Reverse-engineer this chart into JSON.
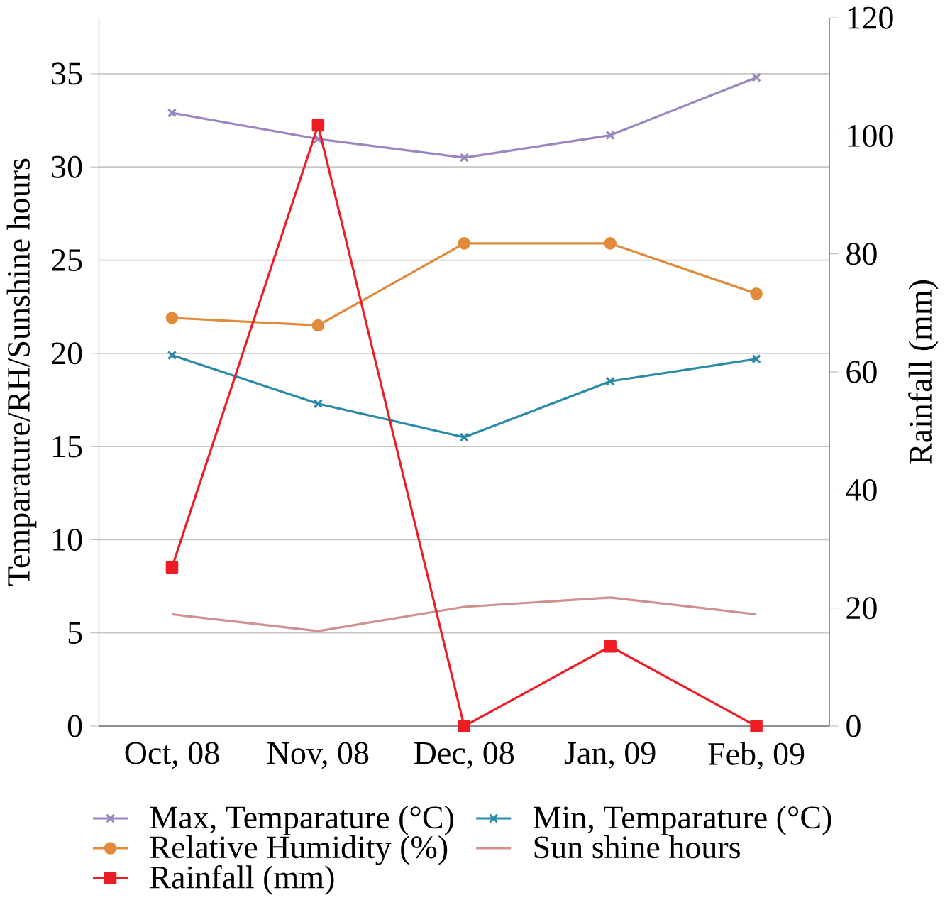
{
  "chart_data": {
    "type": "line",
    "categories": [
      "Oct, 08",
      "Nov, 08",
      "Dec, 08",
      "Jan, 09",
      "Feb, 09"
    ],
    "ylabel": "Temparature/RH/Sunshine hours",
    "y2label": "Rainfall (mm)",
    "ylim": [
      0,
      38
    ],
    "yticks": [
      0,
      5,
      10,
      15,
      20,
      25,
      30,
      35
    ],
    "y2lim": [
      0,
      120
    ],
    "y2ticks": [
      0,
      20,
      40,
      60,
      80,
      100,
      120
    ],
    "grid": "y",
    "legend": "bottom",
    "line_style": "solid",
    "series": [
      {
        "name": "Max, Temparature (°C)",
        "color": "#9a86c0",
        "marker": "cross",
        "values": [
          32.9,
          31.5,
          30.5,
          31.7,
          34.8
        ]
      },
      {
        "name": "Min, Temparature (°C)",
        "color": "#2a8aa8",
        "marker": "cross",
        "values": [
          19.9,
          17.3,
          15.5,
          18.5,
          19.7
        ]
      },
      {
        "name": "Relative Humidity (%)",
        "color": "#e08a3a",
        "marker": "circle",
        "values": [
          21.9,
          21.5,
          25.9,
          25.9,
          23.2
        ]
      },
      {
        "name": "Sun shine hours",
        "color": "#d09090",
        "marker": "none",
        "values": [
          6.0,
          5.1,
          6.4,
          6.9,
          6.0
        ]
      },
      {
        "name": "Rainfall (mm)",
        "color": "#ee1c25",
        "marker": "square",
        "axis": "y2",
        "values": [
          26.9,
          101.8,
          0,
          13.5,
          0
        ]
      }
    ]
  }
}
